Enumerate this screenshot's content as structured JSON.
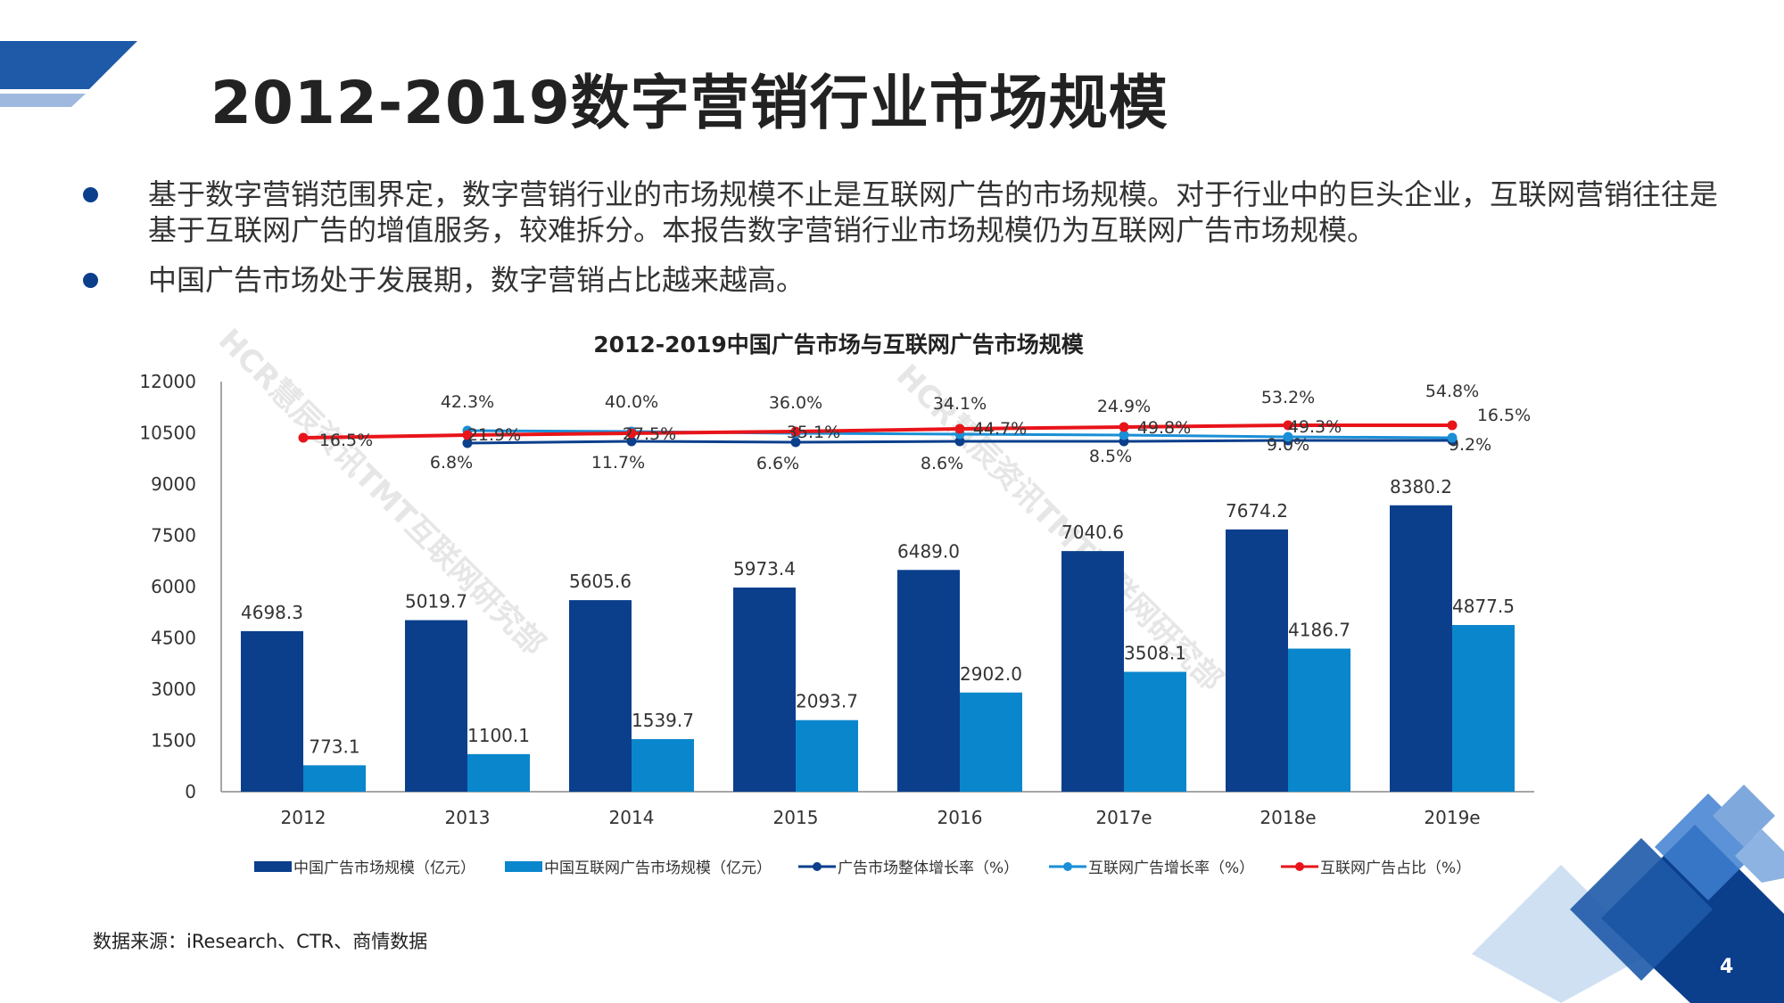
{
  "header": {
    "title": "2012-2019数字营销行业市场规模",
    "accent_color": "#1e5aa8"
  },
  "bullets": [
    {
      "text": "基于数字营销范围界定，数字营销行业的市场规模不止是互联网广告的市场规模。对于行业中的巨头企业，互联网营销往往是基于互联网广告的增值服务，较难拆分。本报告数字营销行业市场规模仍为互联网广告市场规模。"
    },
    {
      "text": "中国广告市场处于发展期，数字营销占比越来越高。"
    }
  ],
  "chart_data": {
    "type": "bar",
    "title": "2012-2019中国广告市场与互联网广告市场规模",
    "categories": [
      "2012",
      "2013",
      "2014",
      "2015",
      "2016",
      "2017e",
      "2018e",
      "2019e"
    ],
    "ylim": [
      0,
      12000
    ],
    "yticks": [
      "0",
      "1500",
      "3000",
      "4500",
      "6000",
      "7500",
      "9000",
      "10500",
      "12000"
    ],
    "series": [
      {
        "name": "中国广告市场规模（亿元）",
        "kind": "bar",
        "color": "#0b3f8c",
        "values": [
          4698.3,
          5019.7,
          5605.6,
          5973.4,
          6489.0,
          7040.6,
          7674.2,
          8380.2
        ],
        "labels": [
          "4698.3",
          "5019.7",
          "5605.6",
          "5973.4",
          "6489.0",
          "7040.6",
          "7674.2",
          "8380.2"
        ]
      },
      {
        "name": "中国互联网广告市场规模（亿元）",
        "kind": "bar",
        "color": "#0a86cc",
        "values": [
          773.1,
          1100.1,
          1539.7,
          2093.7,
          2902.0,
          3508.1,
          4186.7,
          4877.5
        ],
        "labels": [
          "773.1",
          "1100.1",
          "1539.7",
          "2093.7",
          "2902.0",
          "3508.1",
          "4186.7",
          "4877.5"
        ]
      },
      {
        "name": "广告市场整体增长率（%）",
        "kind": "line",
        "color": "#0b3f8c",
        "values": [
          null,
          6.8,
          11.7,
          6.6,
          8.6,
          8.5,
          9.0,
          9.2
        ],
        "labels": [
          "",
          "6.8%",
          "11.7%",
          "6.6%",
          "8.6%",
          "8.5%",
          "9.0%",
          "9.2%"
        ]
      },
      {
        "name": "互联网广告增长率（%）",
        "kind": "line",
        "color": "#1a8fd6",
        "values": [
          null,
          42.3,
          40.0,
          36.0,
          34.1,
          24.9,
          53.2,
          54.8
        ],
        "labels": [
          "",
          "42.3%",
          "40.0%",
          "36.0%",
          "34.1%",
          "24.9%",
          "53.2%",
          "54.8%"
        ]
      },
      {
        "name": "互联网广告占比（%）",
        "kind": "line",
        "color": "#e8141a",
        "values": [
          16.5,
          21.9,
          27.5,
          35.1,
          44.7,
          49.8,
          49.3,
          16.5
        ],
        "labels": [
          "16.5%",
          "21.9%",
          "27.5%",
          "35.1%",
          "44.7%",
          "49.8%",
          "49.3%",
          "16.5%"
        ]
      }
    ],
    "legend_position": "bottom",
    "watermark": "HCR慧辰资讯TMT互联网研究部"
  },
  "footer": {
    "source": "数据来源：iResearch、CTR、商情数据",
    "page_number": "4"
  }
}
